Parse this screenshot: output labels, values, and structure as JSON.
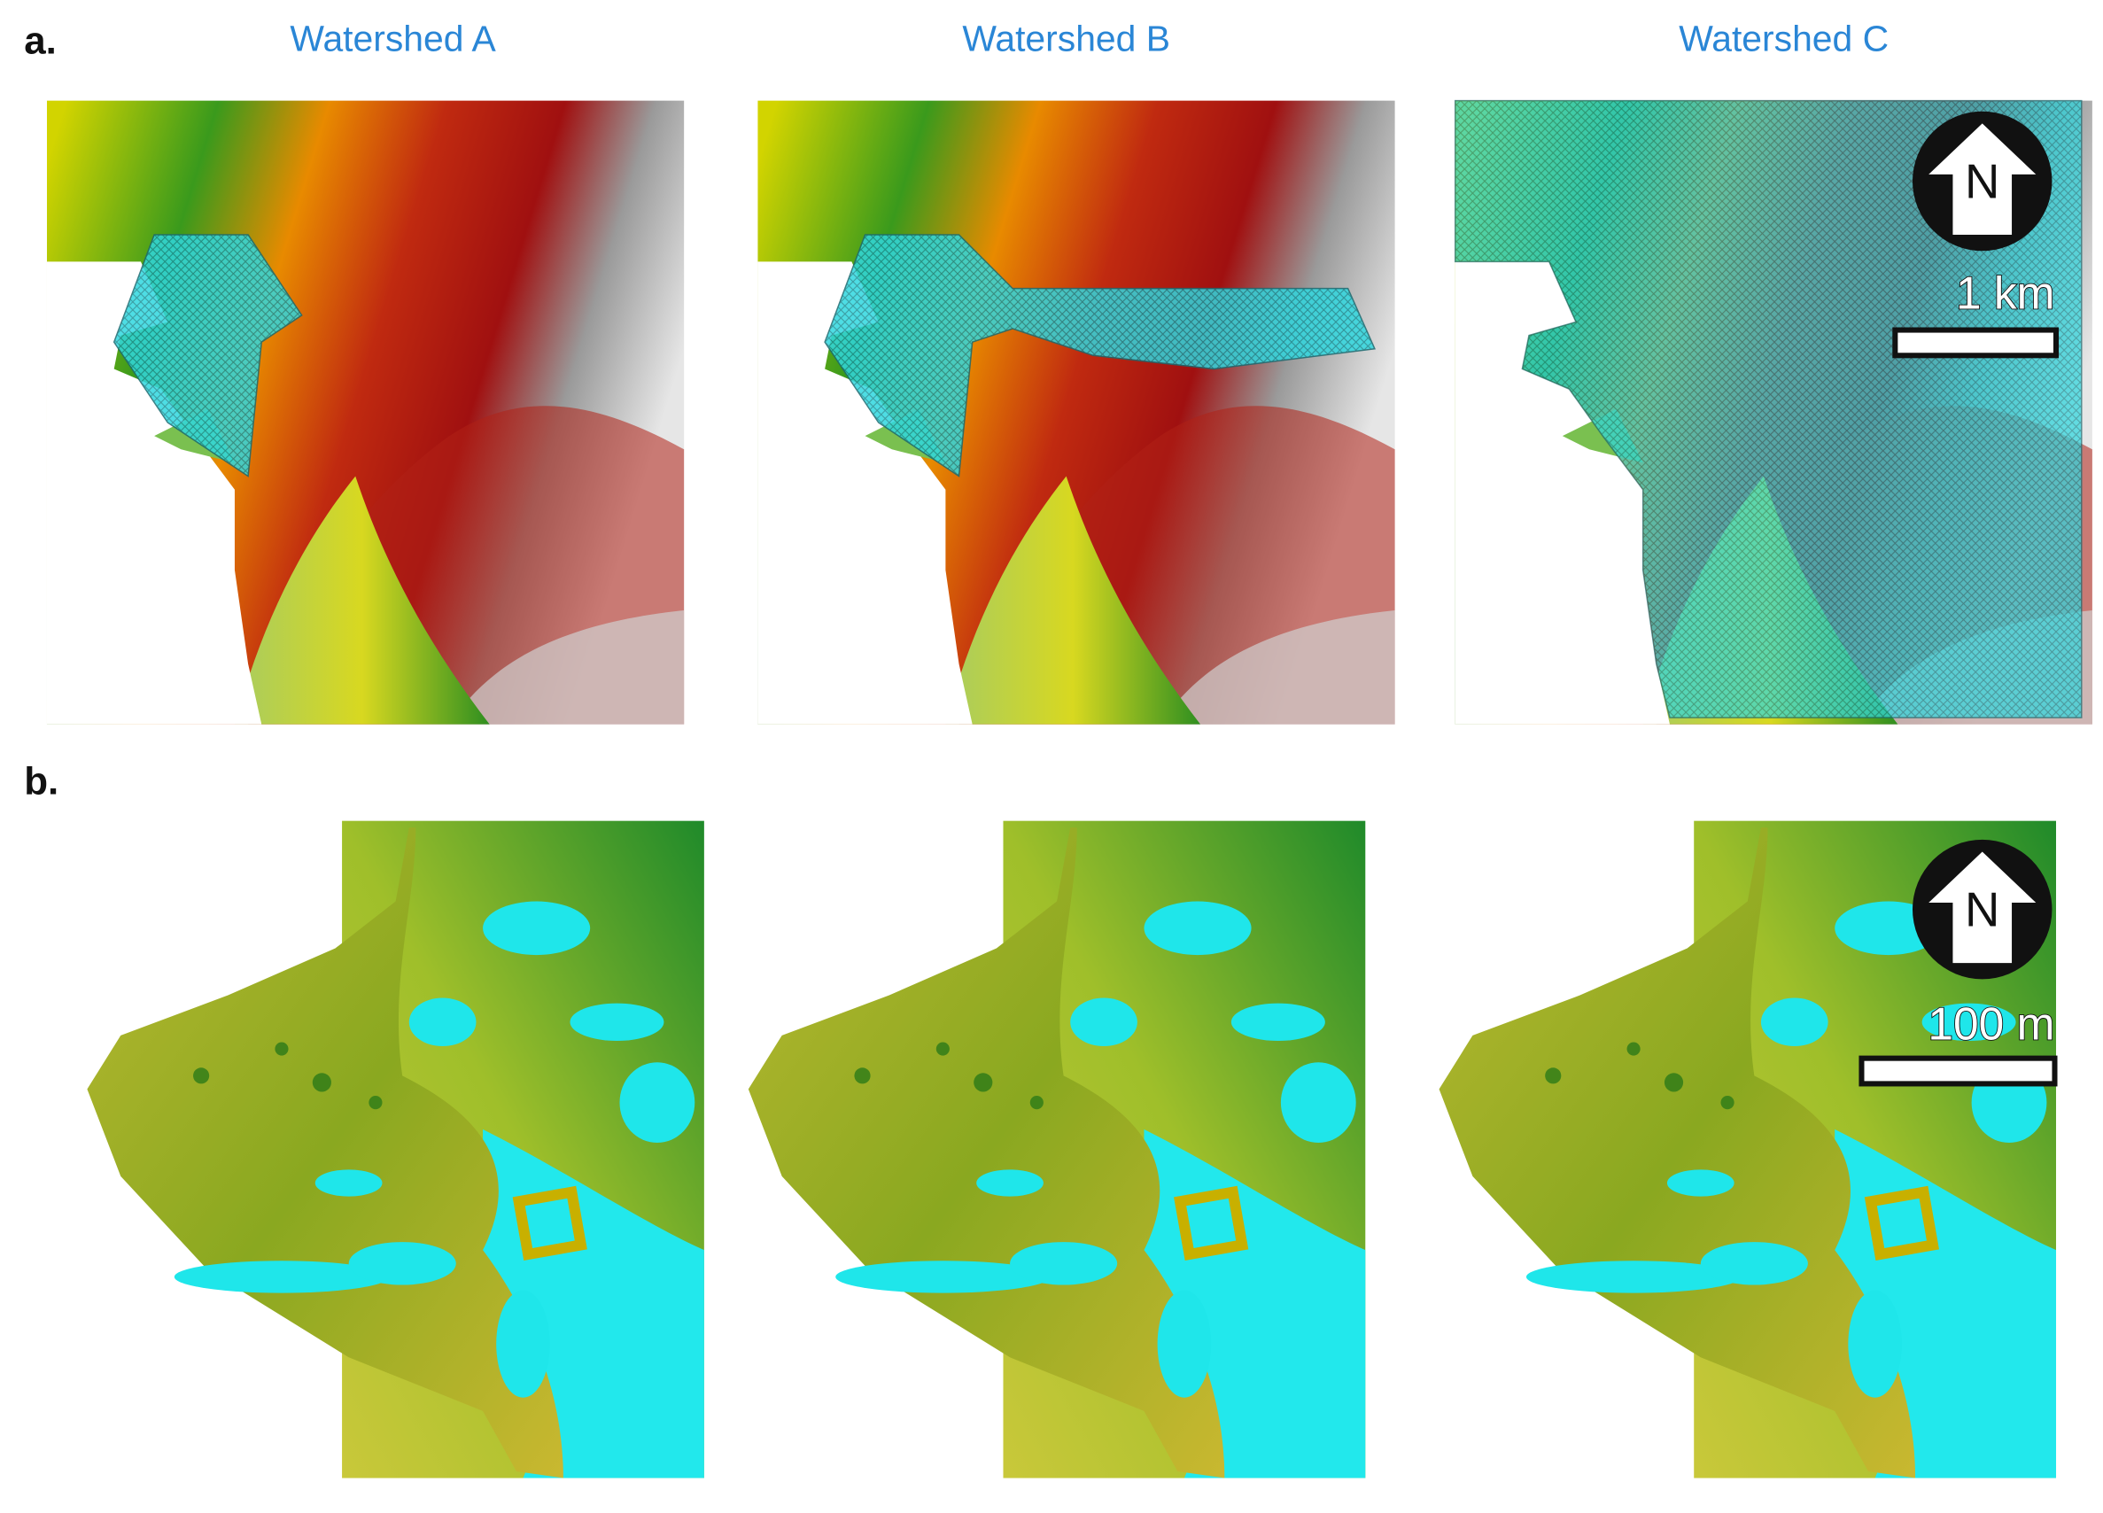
{
  "panel_a": {
    "label": "a.",
    "titles": [
      "Watershed A",
      "Watershed B",
      "Watershed C"
    ],
    "north": "N",
    "scale": "1 km"
  },
  "panel_b": {
    "label": "b.",
    "north": "N",
    "scale": "100 m"
  }
}
